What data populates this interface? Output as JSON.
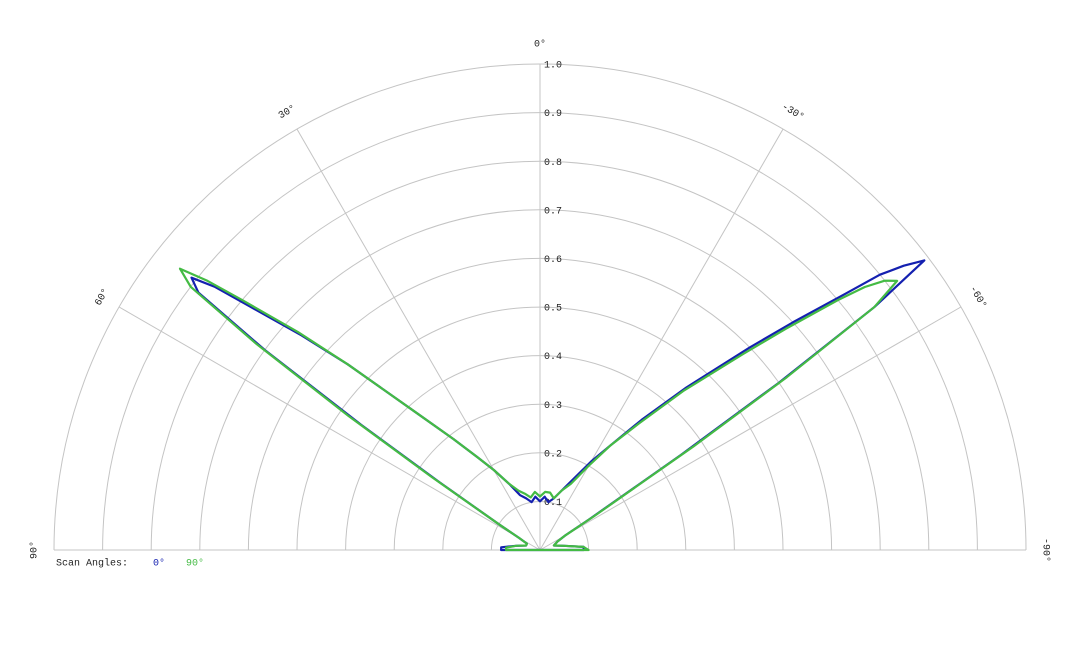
{
  "chart_data": {
    "type": "polar",
    "x": [
      -90,
      -86,
      -80,
      -72,
      -64,
      -60,
      -58,
      -56,
      -55,
      -54,
      -53,
      -52,
      -51,
      -50,
      -48,
      -46,
      -42,
      -38,
      -34,
      -30,
      -25,
      -20,
      -15,
      -10,
      -5,
      0,
      5,
      10,
      15,
      20,
      25,
      30,
      34,
      38,
      42,
      46,
      48,
      50,
      51,
      52,
      53,
      54,
      55,
      56,
      58,
      60,
      64,
      72,
      80,
      86,
      90
    ],
    "series": [
      {
        "name": "0°",
        "color": "#1420b0",
        "values": [
          0.09,
          0.09,
          0.05,
          0.03,
          0.04,
          0.06,
          0.12,
          0.35,
          0.6,
          0.85,
          0.99,
          0.95,
          0.9,
          0.82,
          0.7,
          0.6,
          0.45,
          0.34,
          0.26,
          0.21,
          0.16,
          0.13,
          0.11,
          0.1,
          0.11,
          0.1,
          0.11,
          0.1,
          0.11,
          0.12,
          0.15,
          0.19,
          0.23,
          0.29,
          0.38,
          0.55,
          0.66,
          0.78,
          0.86,
          0.91,
          0.88,
          0.7,
          0.45,
          0.25,
          0.1,
          0.05,
          0.03,
          0.03,
          0.05,
          0.08,
          0.08
        ]
      },
      {
        "name": "90°",
        "color": "#44bb44",
        "values": [
          0.1,
          0.09,
          0.05,
          0.03,
          0.04,
          0.06,
          0.13,
          0.38,
          0.62,
          0.85,
          0.92,
          0.9,
          0.86,
          0.8,
          0.68,
          0.58,
          0.44,
          0.33,
          0.26,
          0.2,
          0.15,
          0.13,
          0.11,
          0.12,
          0.12,
          0.11,
          0.12,
          0.11,
          0.12,
          0.13,
          0.15,
          0.19,
          0.23,
          0.29,
          0.38,
          0.55,
          0.67,
          0.8,
          0.88,
          0.94,
          0.9,
          0.72,
          0.48,
          0.27,
          0.1,
          0.05,
          0.03,
          0.03,
          0.05,
          0.07,
          0.07
        ]
      }
    ],
    "legend_title": "Scan Angles:",
    "xlim": [
      -90,
      90
    ],
    "xticks": [
      {
        "value": -90,
        "label": "-90°"
      },
      {
        "value": -60,
        "label": "-60°"
      },
      {
        "value": -30,
        "label": "-30°"
      },
      {
        "value": 0,
        "label": "0°"
      },
      {
        "value": 30,
        "label": "30°"
      },
      {
        "value": 60,
        "label": "60°"
      },
      {
        "value": 90,
        "label": "90°"
      }
    ],
    "ylim": [
      0,
      1
    ],
    "yticks": [
      0.1,
      0.2,
      0.3,
      0.4,
      0.5,
      0.6,
      0.7,
      0.8,
      0.9,
      {
        "value": 1,
        "label": "1.0"
      }
    ],
    "grid": true
  }
}
